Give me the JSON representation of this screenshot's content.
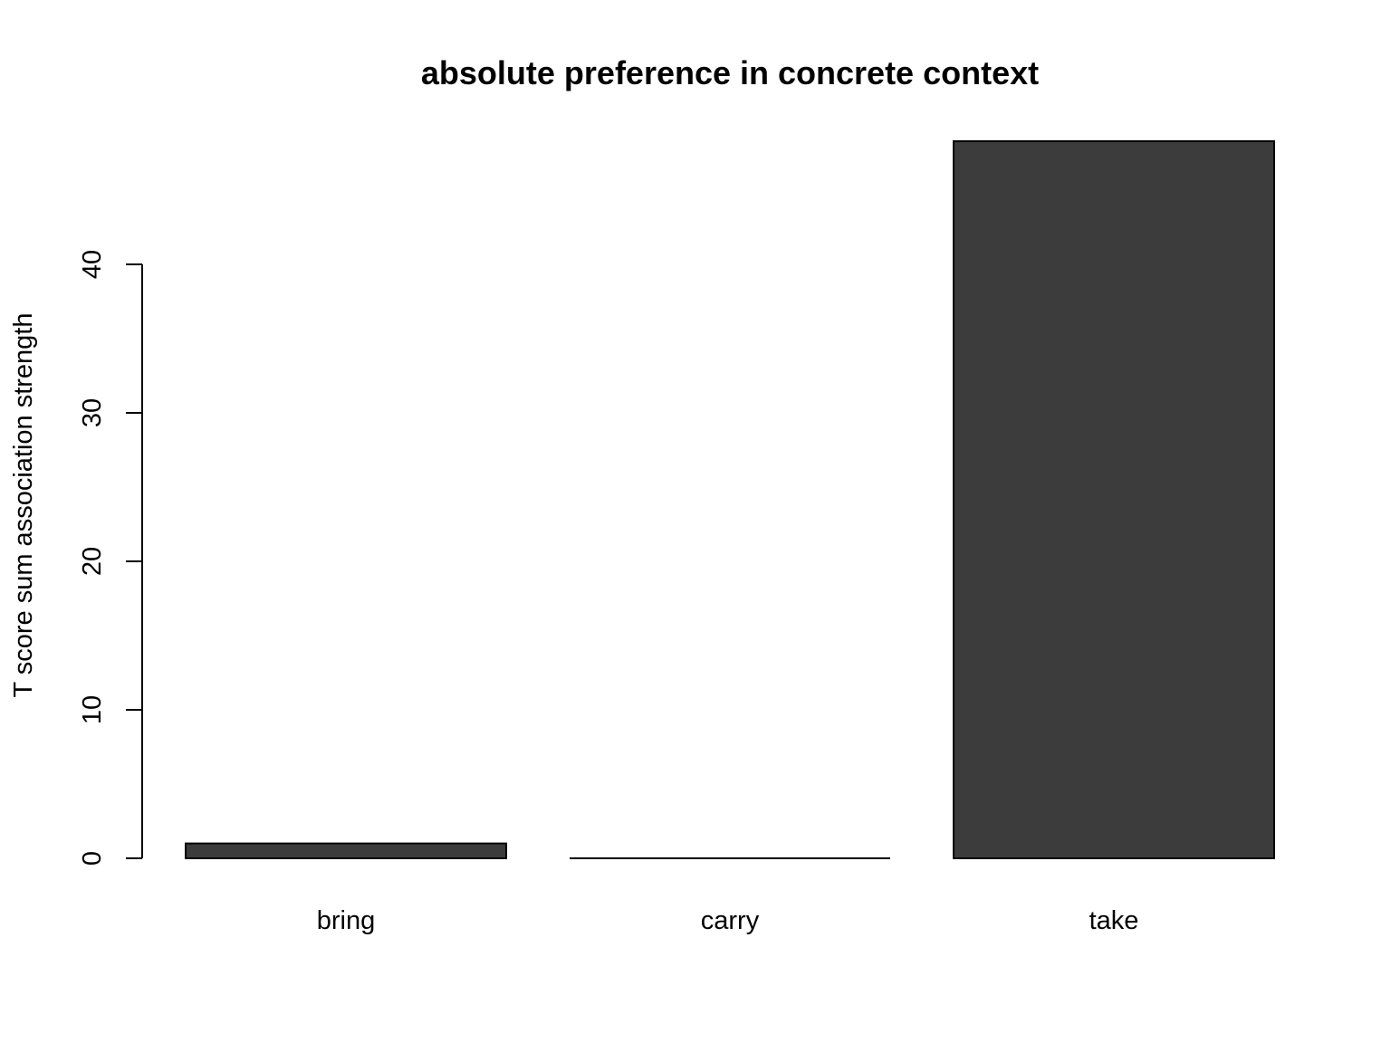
{
  "chart_data": {
    "type": "bar",
    "title": "absolute preference in concrete context",
    "xlabel": "",
    "ylabel": "T score sum association strength",
    "categories": [
      "bring",
      "carry",
      "take"
    ],
    "values": [
      1.0,
      0.0,
      48.3
    ],
    "ylim": [
      0,
      48.3
    ],
    "yticks": [
      0,
      10,
      20,
      30,
      40
    ],
    "ytick_labels": [
      "0",
      "10",
      "20",
      "30",
      "40"
    ],
    "grid": false,
    "legend": "none",
    "colors": {
      "bar_fill": "#3c3c3c",
      "bar_stroke": "#000000",
      "background": "#ffffff"
    }
  }
}
